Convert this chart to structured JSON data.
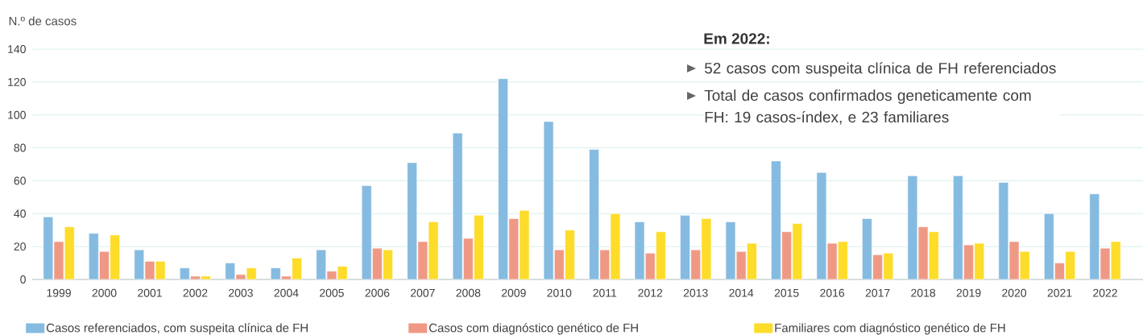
{
  "chart_data": {
    "type": "bar",
    "ylabel": "N.º de casos",
    "categories": [
      "1999",
      "2000",
      "2001",
      "2002",
      "2003",
      "2004",
      "2005",
      "2006",
      "2007",
      "2008",
      "2009",
      "2010",
      "2011",
      "2012",
      "2013",
      "2014",
      "2015",
      "2016",
      "2017",
      "2018",
      "2019",
      "2020",
      "2021",
      "2022"
    ],
    "series": [
      {
        "name": "Casos referenciados, com suspeita clínica de FH",
        "color": "#85bbe0",
        "values": [
          38,
          28,
          18,
          7,
          10,
          7,
          18,
          57,
          71,
          89,
          122,
          96,
          79,
          35,
          39,
          35,
          72,
          65,
          37,
          63,
          63,
          59,
          40,
          52
        ]
      },
      {
        "name": "Casos com diagnóstico genético de FH",
        "color": "#ef9985",
        "values": [
          23,
          17,
          11,
          2,
          3,
          2,
          5,
          19,
          23,
          25,
          37,
          18,
          18,
          16,
          18,
          17,
          29,
          22,
          15,
          32,
          21,
          23,
          10,
          19
        ]
      },
      {
        "name": "Familiares com diagnóstico genético de FH",
        "color": "#fddc2a",
        "values": [
          32,
          27,
          11,
          2,
          7,
          13,
          8,
          18,
          35,
          39,
          42,
          30,
          40,
          29,
          37,
          22,
          34,
          23,
          16,
          29,
          22,
          17,
          17,
          23
        ]
      }
    ],
    "ylim": [
      0,
      140
    ],
    "yticks": [
      0,
      20,
      40,
      60,
      80,
      100,
      120,
      140
    ],
    "grid": "y",
    "legend": "bottom",
    "annotations": [
      "Em 2022:",
      "52 casos com suspeita clínica de FH referenciados",
      "Total de casos confirmados geneticamente com FH: 19 casos-índex, e 23 familiares"
    ]
  }
}
